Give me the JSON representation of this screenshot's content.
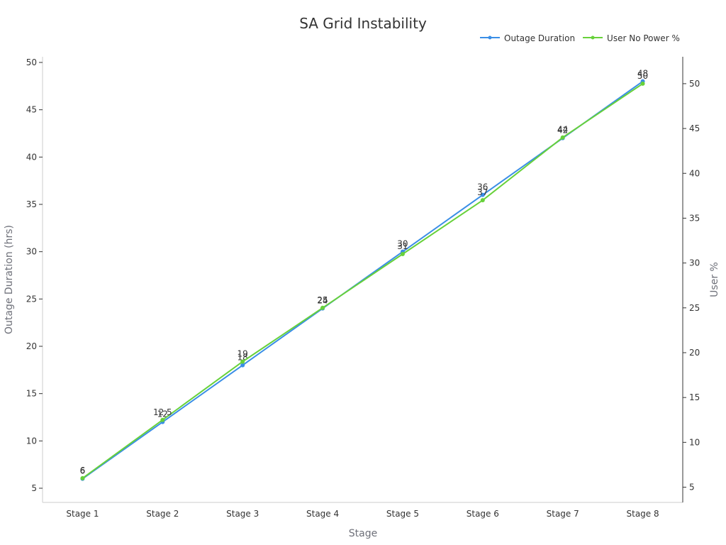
{
  "chart_data": {
    "type": "line",
    "title": "SA Grid Instability",
    "xlabel": "Stage",
    "ylabel_left": "Outage Duration (hrs)",
    "ylabel_right": "User %",
    "categories": [
      "Stage 1",
      "Stage 2",
      "Stage 3",
      "Stage 4",
      "Stage 5",
      "Stage 6",
      "Stage 7",
      "Stage 8"
    ],
    "y_left_ticks": [
      5,
      10,
      15,
      20,
      25,
      30,
      35,
      40,
      45,
      50
    ],
    "y_left_range": [
      3.5,
      50.6
    ],
    "y_right_ticks": [
      5,
      10,
      15,
      20,
      25,
      30,
      35,
      40,
      45,
      50
    ],
    "y_right_range": [
      3.3,
      53
    ],
    "grid": false,
    "legend_position": "top-right",
    "series": [
      {
        "name": "Outage Duration",
        "axis": "left",
        "color": "#3a8ee6",
        "values": [
          6,
          12,
          18,
          24,
          30,
          36,
          42,
          48
        ],
        "labels": [
          "6",
          "12",
          "18",
          "24",
          "30",
          "36",
          "42",
          "48"
        ]
      },
      {
        "name": "User No Power %",
        "axis": "right",
        "color": "#67d13a",
        "values": [
          6,
          12.5,
          19,
          25,
          31,
          37,
          44,
          50
        ],
        "labels": [
          "6",
          "12.5",
          "19",
          "25",
          "31",
          "37",
          "44",
          "50"
        ]
      }
    ]
  }
}
